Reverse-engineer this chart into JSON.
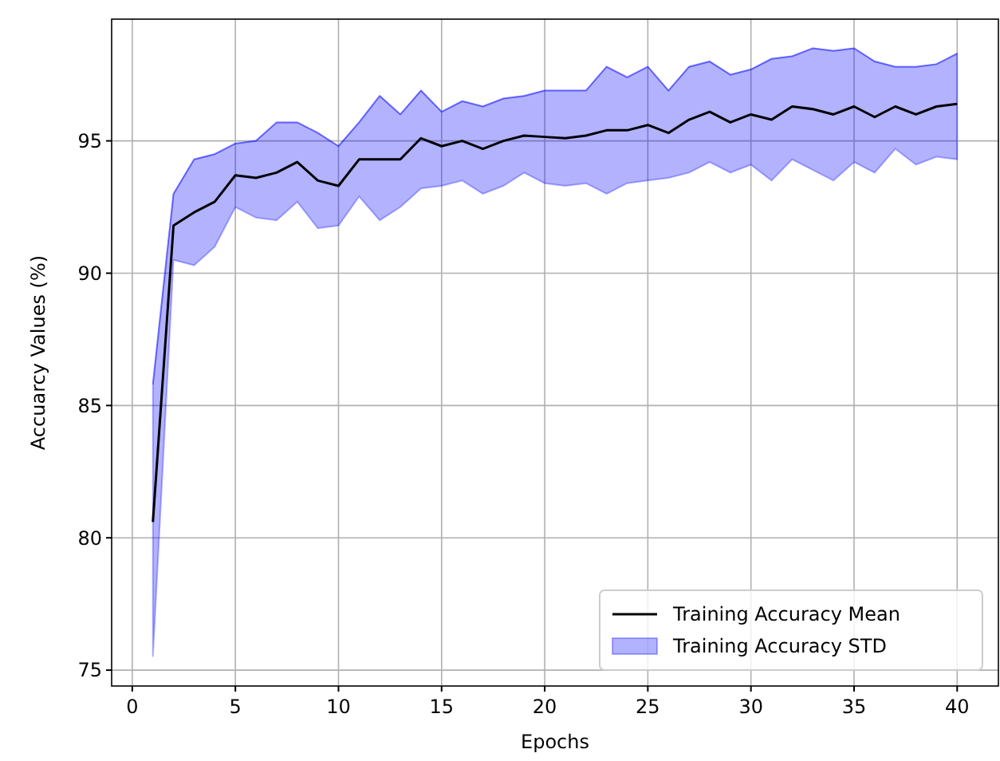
{
  "chart_data": {
    "type": "line",
    "xlabel": "Epochs",
    "ylabel": "Accuarcy Values (%)",
    "x": [
      1,
      2,
      3,
      4,
      5,
      6,
      7,
      8,
      9,
      10,
      11,
      12,
      13,
      14,
      15,
      16,
      17,
      18,
      19,
      20,
      21,
      22,
      23,
      24,
      25,
      26,
      27,
      28,
      29,
      30,
      31,
      32,
      33,
      34,
      35,
      36,
      37,
      38,
      39,
      40
    ],
    "xlim": [
      -1,
      42
    ],
    "ylim": [
      74.4,
      99.6
    ],
    "xticks": [
      0,
      5,
      10,
      15,
      20,
      25,
      30,
      35,
      40
    ],
    "yticks": [
      75,
      80,
      85,
      90,
      95
    ],
    "grid": true,
    "legend": "bottom right",
    "series": [
      {
        "name": "Training Accuracy Mean",
        "color": "#000000",
        "values": [
          80.6,
          91.8,
          92.3,
          92.7,
          93.7,
          93.6,
          93.8,
          94.2,
          93.5,
          93.3,
          94.3,
          94.3,
          94.3,
          95.1,
          94.8,
          95.0,
          94.7,
          95.0,
          95.2,
          95.15,
          95.1,
          95.2,
          95.4,
          95.4,
          95.6,
          95.3,
          95.8,
          96.1,
          95.7,
          96.0,
          95.8,
          96.3,
          96.2,
          96.0,
          96.3,
          95.9,
          96.3,
          96.0,
          96.3,
          96.4
        ]
      },
      {
        "name": "Training Accuracy STD",
        "color": "#0000ff",
        "values": [
          85.8,
          93.0,
          94.3,
          94.5,
          94.9,
          95.0,
          95.7,
          95.7,
          95.3,
          94.8,
          95.7,
          96.7,
          96.0,
          96.9,
          96.1,
          96.5,
          96.3,
          96.6,
          96.7,
          96.9,
          96.9,
          96.9,
          97.8,
          97.4,
          97.8,
          96.9,
          97.8,
          98.0,
          97.5,
          97.7,
          98.1,
          98.2,
          98.5,
          98.4,
          98.5,
          98.0,
          97.8,
          97.8,
          97.9,
          98.3
        ],
        "lower": [
          75.5,
          90.5,
          90.3,
          91.0,
          92.5,
          92.1,
          92.0,
          92.7,
          91.7,
          91.8,
          92.9,
          92.0,
          92.5,
          93.2,
          93.3,
          93.5,
          93.0,
          93.3,
          93.8,
          93.4,
          93.3,
          93.4,
          93.0,
          93.4,
          93.5,
          93.6,
          93.8,
          94.2,
          93.8,
          94.1,
          93.5,
          94.3,
          93.9,
          93.5,
          94.2,
          93.8,
          94.7,
          94.1,
          94.4,
          94.3
        ],
        "upper": [
          85.8,
          93.0,
          94.3,
          94.5,
          94.9,
          95.0,
          95.7,
          95.7,
          95.3,
          94.8,
          95.7,
          96.7,
          96.0,
          96.9,
          96.1,
          96.5,
          96.3,
          96.6,
          96.7,
          96.9,
          96.9,
          96.9,
          97.8,
          97.4,
          97.8,
          96.9,
          97.8,
          98.0,
          97.5,
          97.7,
          98.1,
          98.2,
          98.5,
          98.4,
          98.5,
          98.0,
          97.8,
          97.8,
          97.9,
          98.3
        ]
      }
    ]
  }
}
